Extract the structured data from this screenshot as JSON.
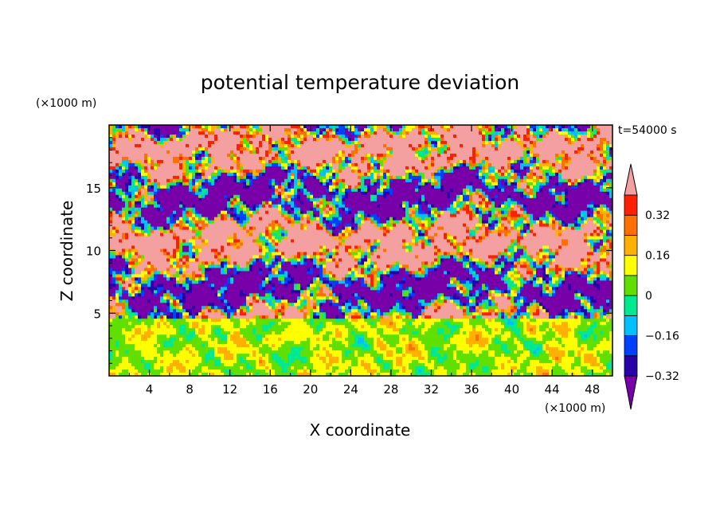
{
  "chart_data": {
    "type": "heatmap",
    "title": "potential temperature deviation",
    "xlabel": "X coordinate",
    "ylabel": "Z coordinate",
    "x_unit": "(×1000 m)",
    "y_unit": "(×1000 m)",
    "time_label": "t=54000 s",
    "xlim": [
      0,
      50
    ],
    "ylim": [
      0,
      20
    ],
    "x_ticks": [
      "4",
      "8",
      "12",
      "16",
      "20",
      "24",
      "28",
      "32",
      "36",
      "40",
      "44",
      "48"
    ],
    "y_ticks": [
      "5",
      "10",
      "15"
    ],
    "grid": false,
    "legend_placement": "right colorbar",
    "colorbar": {
      "levels": [
        -0.4,
        -0.32,
        -0.24,
        -0.16,
        -0.08,
        0,
        0.08,
        0.16,
        0.24,
        0.32,
        0.4
      ],
      "labels": [
        "0.32",
        "0.16",
        "0",
        "−0.16",
        "−0.32"
      ],
      "label_values": [
        0.32,
        0.16,
        0,
        -0.16,
        -0.32
      ],
      "colors": [
        "#7800a8",
        "#2a00a8",
        "#0040ff",
        "#00c0ff",
        "#00e890",
        "#60e000",
        "#ffff00",
        "#ffb000",
        "#ff7000",
        "#ff2000",
        "#f5a0a0"
      ]
    }
  }
}
